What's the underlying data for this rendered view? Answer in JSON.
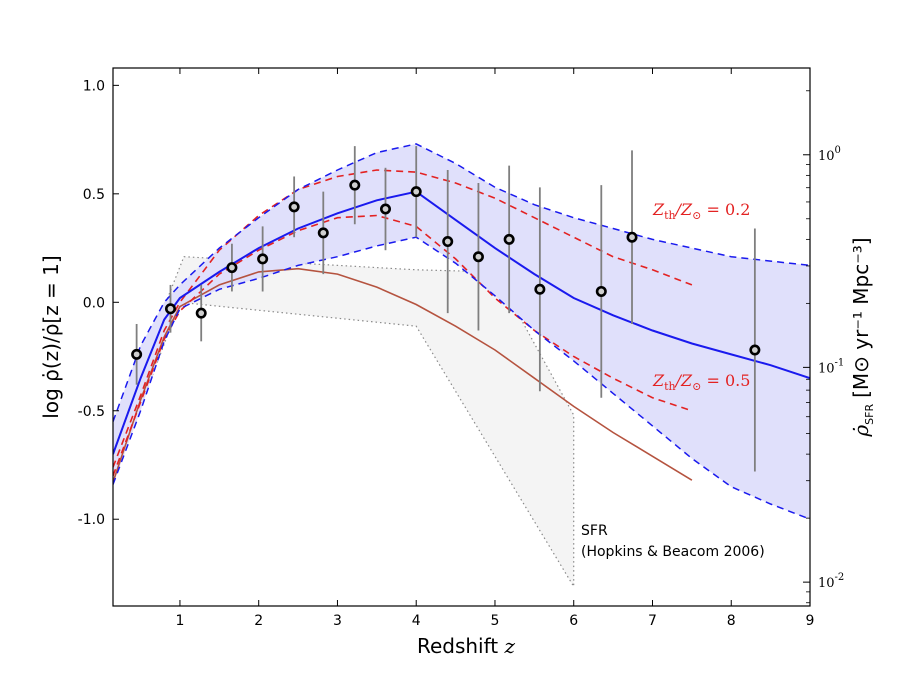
{
  "chart_data": {
    "type": "line",
    "xlabel_text": "Redshift ",
    "xlabel_var": "z",
    "ylabel": "log ρ̇(z)/ρ̇[z = 1]",
    "ylabel_right_sym": "ρ̇",
    "ylabel_right_sub": "SFR",
    "ylabel_right_units": "[M⊙ yr⁻¹ Mpc⁻³]",
    "xlim": [
      0.15,
      9
    ],
    "ylim": [
      -1.4,
      1.08
    ],
    "x_ticks": [
      1,
      2,
      3,
      4,
      5,
      6,
      7,
      8,
      9
    ],
    "x_tick_labels": [
      "1",
      "2",
      "3",
      "4",
      "5",
      "6",
      "7",
      "8",
      "9"
    ],
    "y_ticks": [
      1.0,
      0.5,
      0.0,
      -0.5,
      -1.0
    ],
    "y_tick_labels": [
      "1.0",
      "0.5",
      "0.0",
      "-0.5",
      "-1.0"
    ],
    "right_axis": {
      "scale": "log",
      "ticks": [
        {
          "left_value": 0.68,
          "label_base": "10",
          "label_exp": "0"
        },
        {
          "left_value": -0.3,
          "label_base": "10",
          "label_exp": "-1"
        },
        {
          "left_value": -1.29,
          "label_base": "10",
          "label_exp": "-2"
        }
      ]
    },
    "points": {
      "name": "data",
      "x": [
        0.45,
        0.88,
        1.27,
        1.66,
        2.05,
        2.45,
        2.82,
        3.22,
        3.61,
        4.0,
        4.4,
        4.79,
        5.18,
        5.57,
        6.35,
        6.74,
        8.3
      ],
      "y": [
        -0.24,
        -0.03,
        -0.05,
        0.16,
        0.2,
        0.44,
        0.32,
        0.54,
        0.43,
        0.51,
        0.28,
        0.21,
        0.29,
        0.06,
        0.05,
        0.3,
        -0.22
      ],
      "err": [
        0.14,
        0.11,
        0.13,
        0.11,
        0.15,
        0.14,
        0.19,
        0.18,
        0.19,
        0.21,
        0.33,
        0.34,
        0.34,
        0.47,
        0.49,
        0.4,
        0.56
      ]
    },
    "best_fit": {
      "x": [
        0.15,
        0.5,
        0.8,
        1.0,
        1.5,
        2.0,
        2.5,
        3.0,
        3.5,
        4.0,
        4.5,
        5.0,
        5.5,
        6.0,
        6.5,
        7.0,
        7.5,
        8.0,
        8.5,
        9.0
      ],
      "y": [
        -0.7,
        -0.35,
        -0.08,
        0.02,
        0.14,
        0.25,
        0.34,
        0.41,
        0.47,
        0.51,
        0.38,
        0.25,
        0.13,
        0.02,
        -0.06,
        -0.13,
        -0.19,
        -0.24,
        -0.29,
        -0.35
      ]
    },
    "band_upper": {
      "x": [
        0.15,
        0.5,
        0.8,
        1.0,
        1.5,
        2.0,
        2.5,
        3.0,
        3.5,
        4.0,
        4.5,
        5.0,
        5.5,
        6.0,
        6.5,
        7.0,
        7.5,
        8.0,
        8.5,
        9.0
      ],
      "y": [
        -0.55,
        -0.2,
        0.0,
        0.08,
        0.25,
        0.39,
        0.52,
        0.61,
        0.69,
        0.73,
        0.64,
        0.53,
        0.45,
        0.39,
        0.34,
        0.29,
        0.25,
        0.21,
        0.19,
        0.17
      ]
    },
    "band_lower": {
      "x": [
        0.15,
        0.5,
        0.8,
        1.0,
        1.5,
        2.0,
        2.5,
        3.0,
        3.5,
        4.0,
        4.5,
        5.0,
        5.5,
        6.0,
        6.5,
        7.0,
        7.5,
        8.0,
        8.5,
        9.0
      ],
      "y": [
        -0.84,
        -0.5,
        -0.18,
        -0.03,
        0.06,
        0.11,
        0.17,
        0.21,
        0.26,
        0.3,
        0.18,
        0.03,
        -0.13,
        -0.27,
        -0.42,
        -0.57,
        -0.72,
        -0.85,
        -0.93,
        -1.0
      ]
    },
    "red_upper": {
      "name": "Z_th/Z_sun = 0.2",
      "x": [
        0.15,
        0.5,
        0.8,
        1.0,
        1.5,
        2.0,
        2.5,
        3.0,
        3.5,
        4.0,
        4.5,
        5.0,
        5.5,
        6.0,
        6.5,
        7.0,
        7.5
      ],
      "y": [
        -0.76,
        -0.43,
        -0.13,
        0.0,
        0.24,
        0.4,
        0.52,
        0.58,
        0.61,
        0.6,
        0.55,
        0.48,
        0.39,
        0.3,
        0.21,
        0.15,
        0.08
      ]
    },
    "red_lower": {
      "name": "Z_th/Z_sun = 0.5",
      "x": [
        0.15,
        0.5,
        0.8,
        1.0,
        1.5,
        2.0,
        2.5,
        3.0,
        3.5,
        4.0,
        4.5,
        5.0,
        5.5,
        6.0,
        6.5,
        7.0,
        7.5
      ],
      "y": [
        -0.8,
        -0.46,
        -0.17,
        -0.04,
        0.13,
        0.24,
        0.33,
        0.39,
        0.4,
        0.35,
        0.2,
        0.02,
        -0.13,
        -0.25,
        -0.35,
        -0.44,
        -0.5
      ]
    },
    "sfr_curve": {
      "x": [
        0.15,
        0.5,
        0.8,
        1.0,
        1.5,
        2.0,
        2.5,
        3.0,
        3.5,
        4.0,
        4.5,
        5.0,
        5.5,
        6.0,
        6.5,
        7.0,
        7.5
      ],
      "y": [
        -0.83,
        -0.45,
        -0.16,
        -0.02,
        0.08,
        0.14,
        0.155,
        0.13,
        0.07,
        -0.01,
        -0.11,
        -0.22,
        -0.35,
        -0.48,
        -0.6,
        -0.71,
        -0.82
      ]
    },
    "sfr_envelope": {
      "x": [
        0.15,
        1.05,
        4.0,
        5.0,
        6.0,
        6.0,
        4.0,
        1.0,
        0.15
      ],
      "y": [
        -0.62,
        0.21,
        0.15,
        0.14,
        -0.52,
        -1.31,
        -0.11,
        0.0,
        -0.82
      ]
    },
    "annotations": {
      "z02_prefix": "Z",
      "z02_sub1": "th",
      "z02_mid": "/Z",
      "z02_sub2": "⊙",
      "z02_suffix": " = 0.2",
      "z05_prefix": "Z",
      "z05_sub1": "th",
      "z05_mid": "/Z",
      "z05_sub2": "⊙",
      "z05_suffix": " = 0.5",
      "sfr_line1": "SFR",
      "sfr_line2": "(Hopkins & Beacom 2006)"
    },
    "colors": {
      "blue": "#1a1aee",
      "band_fill": "#e0e0fb",
      "red": "#e32222",
      "sfr_curve": "#b5533f",
      "sfr_fill": "#f4f4f4",
      "gray_dots": "#8a8a8a",
      "error_bars": "#7f7f7f"
    }
  }
}
